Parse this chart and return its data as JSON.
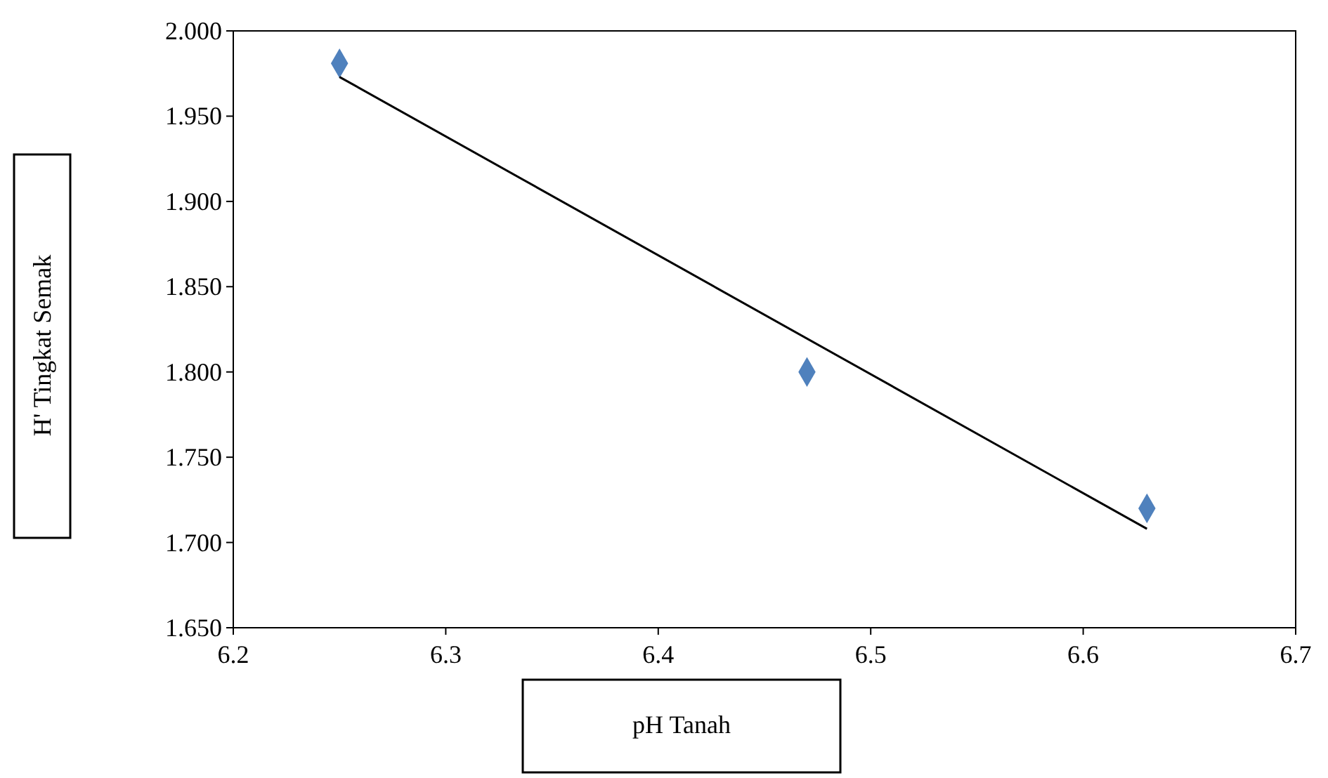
{
  "chart_data": {
    "type": "scatter",
    "xlabel": "pH Tanah",
    "ylabel": "H' Tingkat Semak",
    "xlim": [
      6.2,
      6.7
    ],
    "xticks": [
      6.2,
      6.3,
      6.4,
      6.5,
      6.6,
      6.7
    ],
    "ylim": [
      1.65,
      2.0
    ],
    "yticks": [
      {
        "value": 1.65,
        "label": "1.650"
      },
      {
        "value": 1.7,
        "label": "1.700"
      },
      {
        "value": 1.75,
        "label": "1.750"
      },
      {
        "value": 1.8,
        "label": "1.800"
      },
      {
        "value": 1.85,
        "label": "1.850"
      },
      {
        "value": 1.9,
        "label": "1.900"
      },
      {
        "value": 1.95,
        "label": "1.950"
      },
      {
        "value": 2.0,
        "label": "2.000"
      }
    ],
    "grid": false,
    "marker": "diamond",
    "series": [
      {
        "color": "#4f81bd",
        "x": [
          6.25,
          6.47,
          6.63
        ],
        "values": [
          1.981,
          1.8,
          1.72
        ]
      },
      {
        "type": "line",
        "color": "#000000",
        "marker": "none",
        "line_style": "solid",
        "x": [
          6.25,
          6.63
        ],
        "values": [
          1.973,
          1.708
        ]
      }
    ]
  }
}
